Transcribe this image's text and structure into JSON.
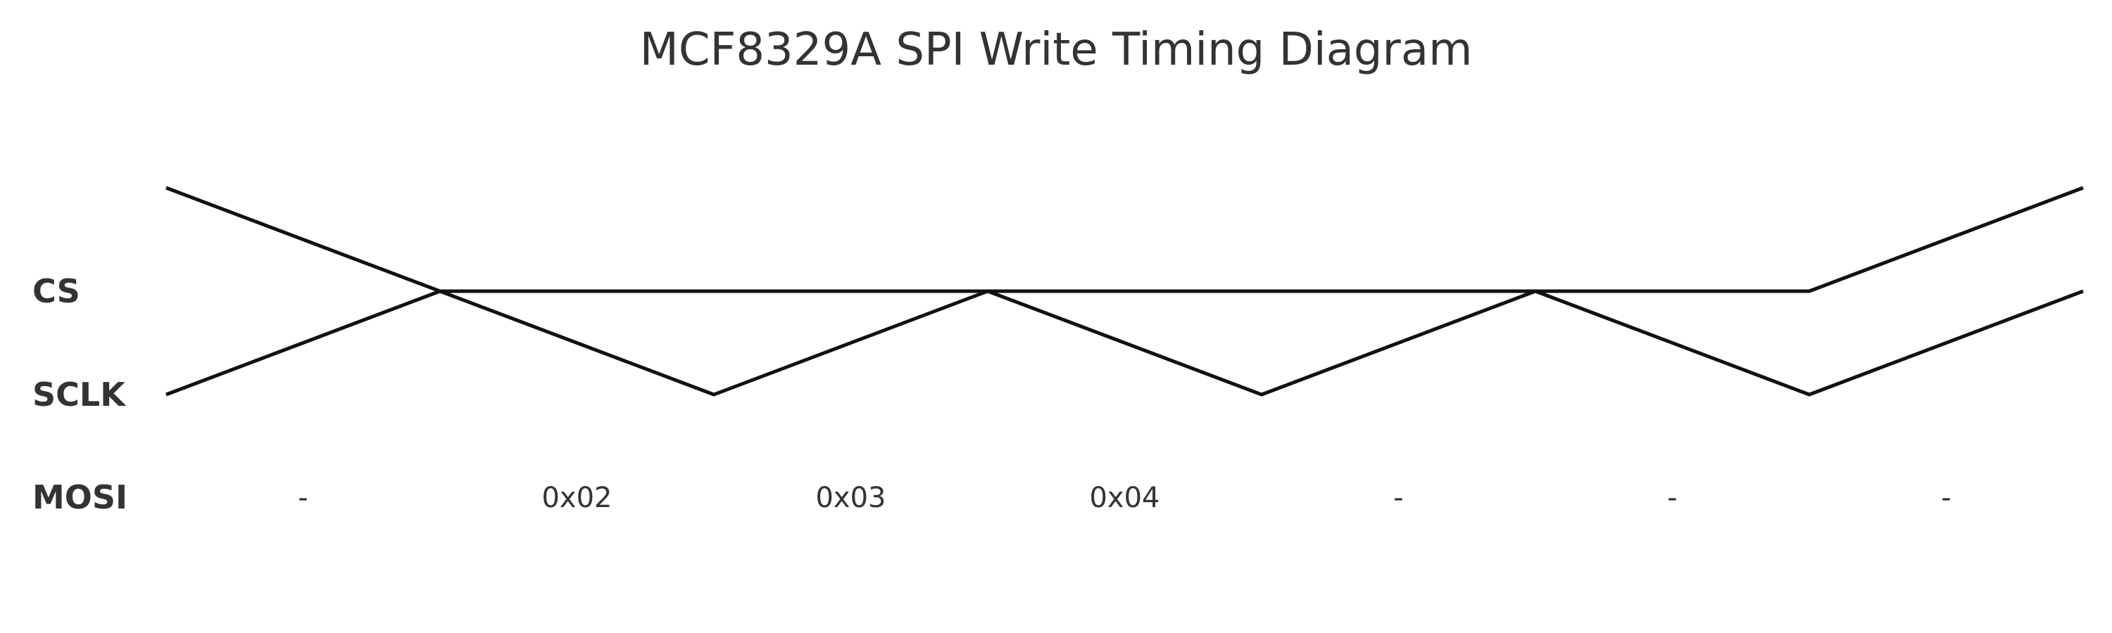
{
  "title": "MCF8329A SPI Write Timing Diagram",
  "signals": [
    {
      "name": "CS",
      "levels": [
        1,
        0,
        0,
        0,
        0,
        0,
        0,
        1
      ]
    },
    {
      "name": "SCLK",
      "levels": [
        0,
        1,
        0,
        1,
        0,
        1,
        0,
        1
      ]
    },
    {
      "name": "MOSI",
      "values": [
        "-",
        "0x02",
        "0x03",
        "0x04",
        "-",
        "-",
        "-"
      ]
    }
  ]
}
